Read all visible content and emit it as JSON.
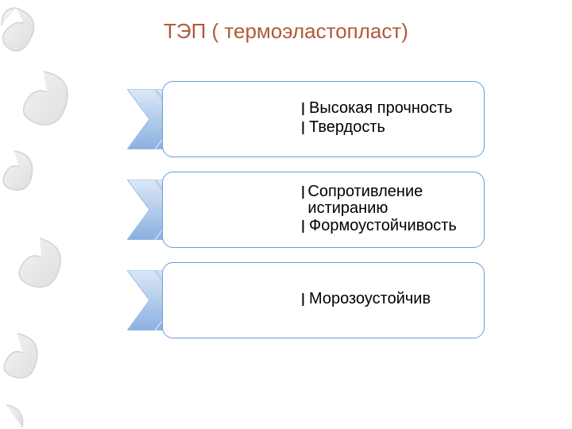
{
  "title": {
    "text": "ТЭП ( термоэластопласт)",
    "color": "#b05a3a",
    "fontsize": 26
  },
  "background_color": "#ffffff",
  "swirl": {
    "stroke": "#d0d0d0",
    "fill": "#e8e8e8"
  },
  "chevron": {
    "gradient_top": "#dce8f7",
    "gradient_bottom": "#8ab0e0",
    "stroke": "#9fbde2"
  },
  "box": {
    "border_color": "#6a9bd8",
    "background": "#ffffff",
    "border_radius": 14
  },
  "rows": [
    {
      "items": [
        "Высокая прочность",
        "Твердость"
      ]
    },
    {
      "items": [
        "Сопротивление истиранию",
        "Формоустойчивость"
      ]
    },
    {
      "items": [
        "Морозоустойчив"
      ]
    }
  ],
  "bullet": {
    "char": "l",
    "color": "#000000",
    "text_fontsize": 20
  }
}
